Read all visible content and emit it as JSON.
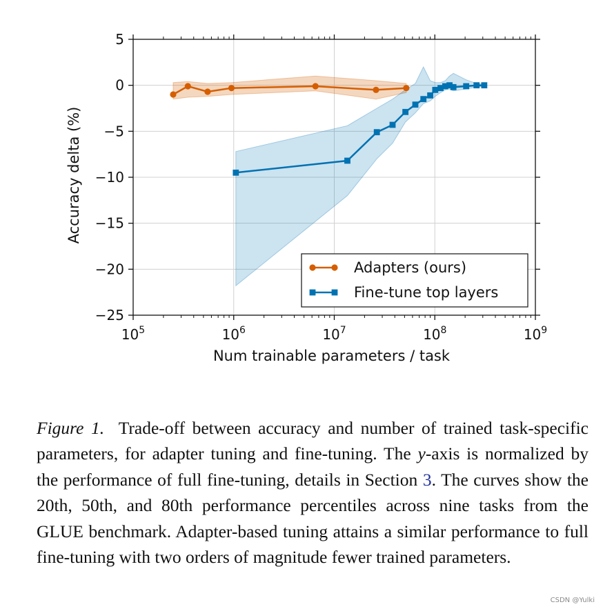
{
  "chart_data": {
    "type": "line",
    "xscale": "log",
    "xlim": [
      100000,
      1000000000
    ],
    "ylim": [
      -25,
      5
    ],
    "xlabel": "Num trainable parameters / task",
    "ylabel": "Accuracy delta (%)",
    "x_ticks": [
      {
        "value": 100000,
        "base": "10",
        "exp": "5"
      },
      {
        "value": 1000000,
        "base": "10",
        "exp": "6"
      },
      {
        "value": 10000000,
        "base": "10",
        "exp": "7"
      },
      {
        "value": 100000000,
        "base": "10",
        "exp": "8"
      },
      {
        "value": 1000000000,
        "base": "10",
        "exp": "9"
      }
    ],
    "y_ticks": [
      {
        "value": 5,
        "label": "5"
      },
      {
        "value": 0,
        "label": "0"
      },
      {
        "value": -5,
        "label": "−5"
      },
      {
        "value": -10,
        "label": "−10"
      },
      {
        "value": -15,
        "label": "−15"
      },
      {
        "value": -20,
        "label": "−20"
      },
      {
        "value": -25,
        "label": "−25"
      }
    ],
    "grid": true,
    "legend_position": "lower-right",
    "series": [
      {
        "name": "Adapters (ours)",
        "color": "#d55e00",
        "marker": "circle",
        "x": [
          250000,
          350000,
          550000,
          950000,
          6500000,
          26000000,
          52000000
        ],
        "y": [
          -1.0,
          -0.1,
          -0.7,
          -0.3,
          -0.1,
          -0.5,
          -0.3
        ],
        "band_upper": [
          0.3,
          0.4,
          0.2,
          0.3,
          1.0,
          0.5,
          0.2
        ],
        "band_lower": [
          -1.5,
          -1.3,
          -1.2,
          -1.0,
          -0.6,
          -1.5,
          -0.8
        ]
      },
      {
        "name": "Fine-tune top layers",
        "color": "#0072b2",
        "marker": "square",
        "x": [
          1050000,
          13500000,
          26500000,
          38000000,
          51000000,
          64000000,
          77000000,
          90000000,
          101000000,
          114000000,
          127000000,
          140000000,
          153000000,
          205000000,
          260000000,
          310000000
        ],
        "y": [
          -9.5,
          -8.2,
          -5.1,
          -4.3,
          -2.9,
          -2.1,
          -1.5,
          -1.1,
          -0.5,
          -0.3,
          -0.1,
          0.0,
          -0.2,
          -0.1,
          0.0,
          0.0
        ],
        "band_upper": [
          -7.2,
          -4.4,
          -2.5,
          -1.5,
          -0.5,
          0.2,
          2.0,
          0.5,
          0.3,
          0.3,
          0.5,
          1.0,
          1.3,
          0.6,
          0.2,
          0.1
        ],
        "band_lower": [
          -21.8,
          -12.0,
          -8.0,
          -6.3,
          -4.0,
          -3.0,
          -2.0,
          -1.7,
          -1.2,
          -0.8,
          -0.5,
          -0.4,
          -0.6,
          -0.4,
          -0.2,
          -0.1
        ]
      }
    ]
  },
  "caption": {
    "lead": "Figure 1.",
    "text_1": "Trade-off between accuracy and number of trained task-specific parameters, for adapter tuning and fine-tuning. The",
    "var": "y",
    "text_2": "-axis is normalized by the performance of full fine-tuning, details in Section",
    "ref": "3",
    "text_3": ". The curves show the 20th, 50th, and 80th performance percentiles across nine tasks from the GLUE benchmark. Adapter-based tuning attains a similar performance to full fine-tuning with two orders of magnitude fewer trained parameters."
  },
  "watermark": "CSDN @Yulki"
}
